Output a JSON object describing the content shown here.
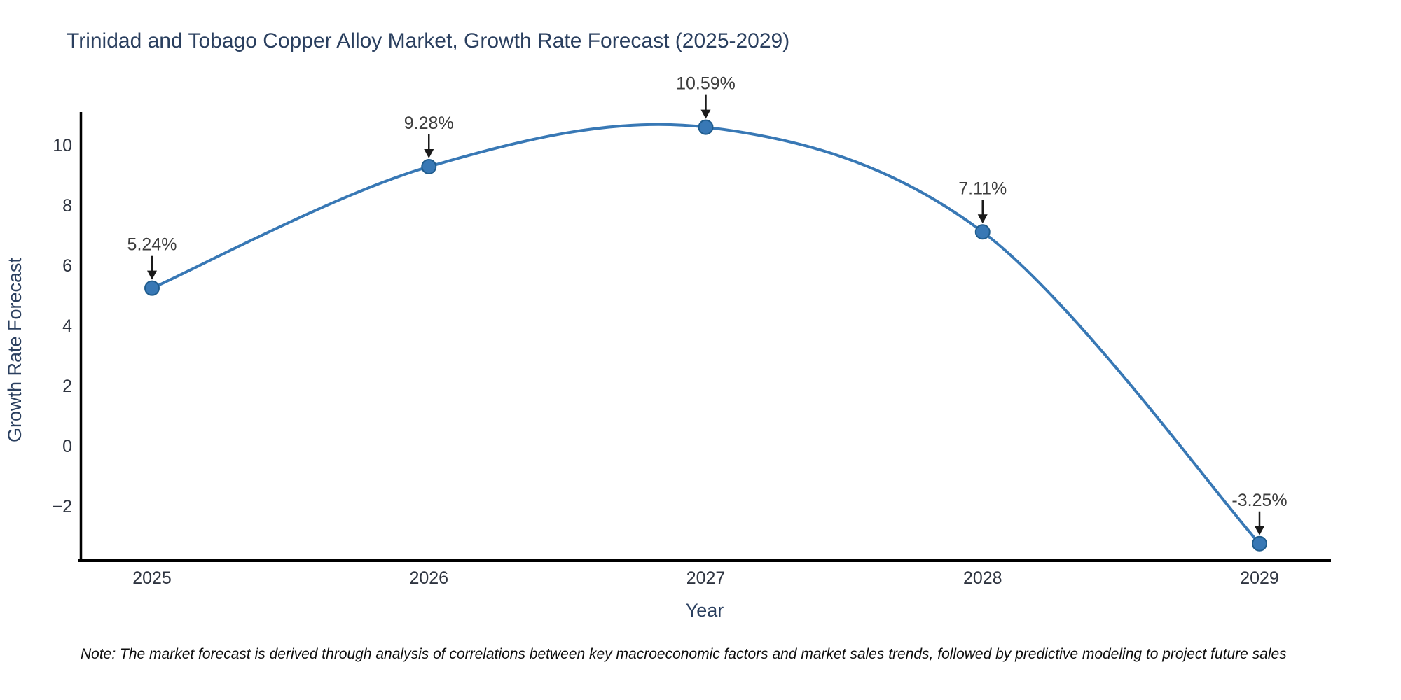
{
  "chart_data": {
    "type": "line",
    "title": "Trinidad and Tobago Copper Alloy Market, Growth Rate Forecast (2025-2029)",
    "xlabel": "Year",
    "ylabel": "Growth Rate Forecast",
    "categories": [
      "2025",
      "2026",
      "2027",
      "2028",
      "2029"
    ],
    "series": [
      {
        "name": "Growth Rate Forecast",
        "values": [
          5.24,
          9.28,
          10.59,
          7.11,
          -3.25
        ]
      }
    ],
    "point_labels": [
      "5.24%",
      "9.28%",
      "10.59%",
      "7.11%",
      "-3.25%"
    ],
    "yticks": [
      {
        "value": 10,
        "label": "10"
      },
      {
        "value": 8,
        "label": "8"
      },
      {
        "value": 6,
        "label": "6"
      },
      {
        "value": 4,
        "label": "4"
      },
      {
        "value": 2,
        "label": "2"
      },
      {
        "value": 0,
        "label": "0"
      },
      {
        "value": -2,
        "label": "−2"
      }
    ],
    "ylim": [
      -3.8,
      11.1
    ],
    "grid": false,
    "legend_visible": false,
    "line_shape": "spline",
    "note": "Note: The market forecast is derived through analysis of correlations between key macroeconomic factors and market sales trends, followed by predictive modeling to project future sales",
    "colors": {
      "line": "#3878b5",
      "marker_fill": "#3878b5",
      "marker_edge": "#1f5c8d",
      "axis_line": "#000000",
      "title_text": "#2a3f5f",
      "tick_text": "#2e3440",
      "annotation_text": "#3d3d3d",
      "arrow": "#1a1a1a",
      "background": "#ffffff"
    }
  }
}
